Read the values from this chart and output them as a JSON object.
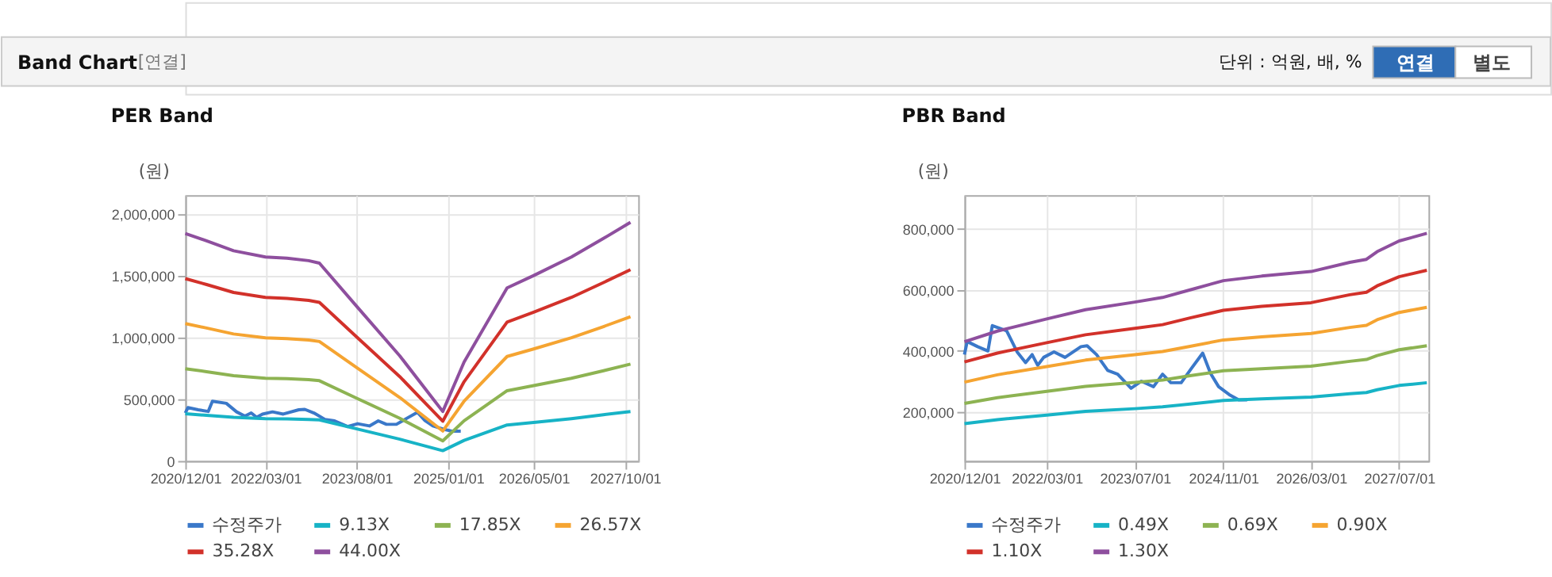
{
  "chart_data": [
    {
      "type": "line",
      "title": "PER Band",
      "ylabel": "(원)",
      "annotations": [
        "Band Chart",
        "[연결]",
        "단위 : 억원, 배, %",
        "연결",
        "별도"
      ],
      "xlim": [
        "2020-12-01",
        "2027-12-15"
      ],
      "xticks": [
        {
          "value": "2020-12-01",
          "label": "2020/12/01"
        },
        {
          "value": "2022-03-01",
          "label": "2022/03/01"
        },
        {
          "value": "2023-08-01",
          "label": "2023/08/01"
        },
        {
          "value": "2025-01-01",
          "label": "2025/01/01"
        },
        {
          "value": "2026-05-01",
          "label": "2026/05/01"
        },
        {
          "value": "2027-10-01",
          "label": "2027/10/01"
        }
      ],
      "ylim": [
        0,
        2150000
      ],
      "yticks": [
        {
          "value": 0,
          "label": "0"
        },
        {
          "value": 500000,
          "label": "500,000"
        },
        {
          "value": 1000000,
          "label": "1,000,000"
        },
        {
          "value": 1500000,
          "label": "1,500,000"
        },
        {
          "value": 2000000,
          "label": "2,000,000"
        }
      ],
      "grid": true,
      "legend": "bottom",
      "marker": "none",
      "line_style": "solid",
      "series": [
        {
          "name": "수정주가",
          "color": "#3a78c9",
          "x": [
            "2020-12-01",
            "2020-12-16",
            "2021-02-12",
            "2021-04-10",
            "2021-05-04",
            "2021-07-22",
            "2021-09-18",
            "2021-11-04",
            "2021-12-10",
            "2022-01-10",
            "2022-02-12",
            "2022-04-10",
            "2022-06-10",
            "2022-09-06",
            "2022-10-10",
            "2022-12-01",
            "2023-02-01",
            "2023-03-28",
            "2023-06-10",
            "2023-08-06",
            "2023-10-12",
            "2023-12-01",
            "2024-01-16",
            "2024-03-13",
            "2024-05-10",
            "2024-07-10",
            "2024-08-22",
            "2024-10-06",
            "2024-12-04",
            "2025-01-25",
            "2025-03-13"
          ],
          "values": [
            388000,
            431000,
            414000,
            400000,
            483000,
            466000,
            397000,
            362000,
            388000,
            353000,
            379000,
            397000,
            379000,
            414000,
            417000,
            388000,
            336000,
            324000,
            278000,
            301000,
            283000,
            324000,
            296000,
            296000,
            344000,
            393000,
            327000,
            283000,
            257000,
            240000,
            240000
          ]
        },
        {
          "name": "9.13X",
          "color": "#17b3c6",
          "values": [
            382000,
            369000,
            353000,
            342000,
            340000,
            336000,
            332000,
            259000,
            176000,
            83000,
            166000,
            291000,
            311000,
            342000,
            374000,
            400000
          ]
        },
        {
          "name": "17.85X",
          "color": "#8db352",
          "values": [
            746000,
            722000,
            690000,
            669000,
            665000,
            657000,
            649000,
            507000,
            345000,
            162000,
            325000,
            568000,
            609000,
            669000,
            730000,
            783000
          ]
        },
        {
          "name": "26.57X",
          "color": "#f5a431",
          "values": [
            1111000,
            1075000,
            1027000,
            996000,
            990000,
            978000,
            966000,
            755000,
            513000,
            242000,
            483000,
            845000,
            906000,
            996000,
            1087000,
            1166000
          ]
        },
        {
          "name": "35.28X",
          "color": "#d2312a",
          "values": [
            1475000,
            1427000,
            1363000,
            1323000,
            1315000,
            1299000,
            1283000,
            1002000,
            682000,
            321000,
            641000,
            1123000,
            1203000,
            1323000,
            1443000,
            1547000
          ]
        },
        {
          "name": "44.00X",
          "color": "#8e4f9e",
          "values": [
            1840000,
            1780000,
            1700000,
            1650000,
            1640000,
            1620000,
            1600000,
            1250000,
            850000,
            400000,
            800000,
            1400000,
            1500000,
            1650000,
            1800000,
            1930000
          ]
        }
      ],
      "x": [
        "2020-12-01",
        "2021-04-01",
        "2021-09-01",
        "2022-03-01",
        "2022-07-01",
        "2022-11-01",
        "2023-01-01",
        "2023-08-01",
        "2024-04-01",
        "2024-12-01",
        "2025-04-01",
        "2025-12-01",
        "2026-05-01",
        "2026-12-01",
        "2027-06-01",
        "2027-11-01"
      ]
    },
    {
      "type": "line",
      "title": "PBR Band",
      "ylabel": "(원)",
      "xlim": [
        "2020-12-01",
        "2027-12-10"
      ],
      "xticks": [
        {
          "value": "2020-12-01",
          "label": "2020/12/01"
        },
        {
          "value": "2022-03-01",
          "label": "2022/03/01"
        },
        {
          "value": "2023-07-01",
          "label": "2023/07/01"
        },
        {
          "value": "2024-11-01",
          "label": "2024/11/01"
        },
        {
          "value": "2026-03-01",
          "label": "2026/03/01"
        },
        {
          "value": "2027-07-01",
          "label": "2027/07/01"
        }
      ],
      "ylim": [
        40000,
        910000
      ],
      "yticks": [
        {
          "value": 200000,
          "label": "200,000"
        },
        {
          "value": 400000,
          "label": "400,000"
        },
        {
          "value": 600000,
          "label": "600,000"
        },
        {
          "value": 800000,
          "label": "800,000"
        }
      ],
      "grid": true,
      "legend": "bottom",
      "marker": "none",
      "line_style": "solid",
      "series": [
        {
          "name": "수정주가",
          "color": "#3a78c9",
          "x": [
            "2020-12-01",
            "2020-12-16",
            "2021-02-12",
            "2021-04-10",
            "2021-05-04",
            "2021-07-22",
            "2021-09-18",
            "2021-11-04",
            "2021-12-10",
            "2022-01-10",
            "2022-02-12",
            "2022-04-10",
            "2022-06-10",
            "2022-09-06",
            "2022-10-10",
            "2022-12-01",
            "2023-02-01",
            "2023-03-28",
            "2023-06-10",
            "2023-08-06",
            "2023-10-12",
            "2023-12-01",
            "2024-01-16",
            "2024-03-13",
            "2024-05-10",
            "2024-07-10",
            "2024-08-22",
            "2024-10-06",
            "2024-12-04",
            "2025-01-25",
            "2025-03-13"
          ],
          "values": [
            388000,
            431000,
            414000,
            400000,
            483000,
            466000,
            397000,
            362000,
            388000,
            353000,
            379000,
            397000,
            379000,
            414000,
            417000,
            388000,
            336000,
            324000,
            278000,
            301000,
            283000,
            324000,
            296000,
            296000,
            344000,
            393000,
            327000,
            283000,
            257000,
            240000,
            240000
          ]
        },
        {
          "name": "0.49X",
          "color": "#17b3c6",
          "values": [
            162000,
            175000,
            190000,
            202000,
            211000,
            217000,
            226000,
            238000,
            243000,
            249000,
            260000,
            264000,
            273000,
            287000,
            296000
          ]
        },
        {
          "name": "0.69X",
          "color": "#8db352",
          "values": [
            228000,
            247000,
            268000,
            284000,
            297000,
            305000,
            319000,
            335000,
            342000,
            350000,
            366000,
            372000,
            385000,
            404000,
            417000
          ]
        },
        {
          "name": "0.90X",
          "color": "#f5a431",
          "values": [
            298000,
            322000,
            349000,
            370000,
            388000,
            398000,
            415000,
            436000,
            446000,
            457000,
            477000,
            484000,
            502000,
            526000,
            543000
          ]
        },
        {
          "name": "1.10X",
          "color": "#d2312a",
          "values": [
            364000,
            393000,
            427000,
            453000,
            474000,
            486000,
            508000,
            533000,
            546000,
            558000,
            584000,
            592000,
            613000,
            643000,
            664000
          ]
        },
        {
          "name": "1.30X",
          "color": "#8e4f9e",
          "values": [
            430000,
            465000,
            505000,
            535000,
            560000,
            575000,
            600000,
            630000,
            645000,
            660000,
            690000,
            700000,
            725000,
            760000,
            785000
          ]
        }
      ],
      "x": [
        "2020-12-01",
        "2021-06-01",
        "2022-03-01",
        "2022-10-01",
        "2023-07-01",
        "2023-12-01",
        "2024-05-01",
        "2024-11-01",
        "2025-06-01",
        "2026-03-01",
        "2026-10-01",
        "2027-01-01",
        "2027-03-01",
        "2027-07-01",
        "2027-12-01"
      ]
    }
  ]
}
